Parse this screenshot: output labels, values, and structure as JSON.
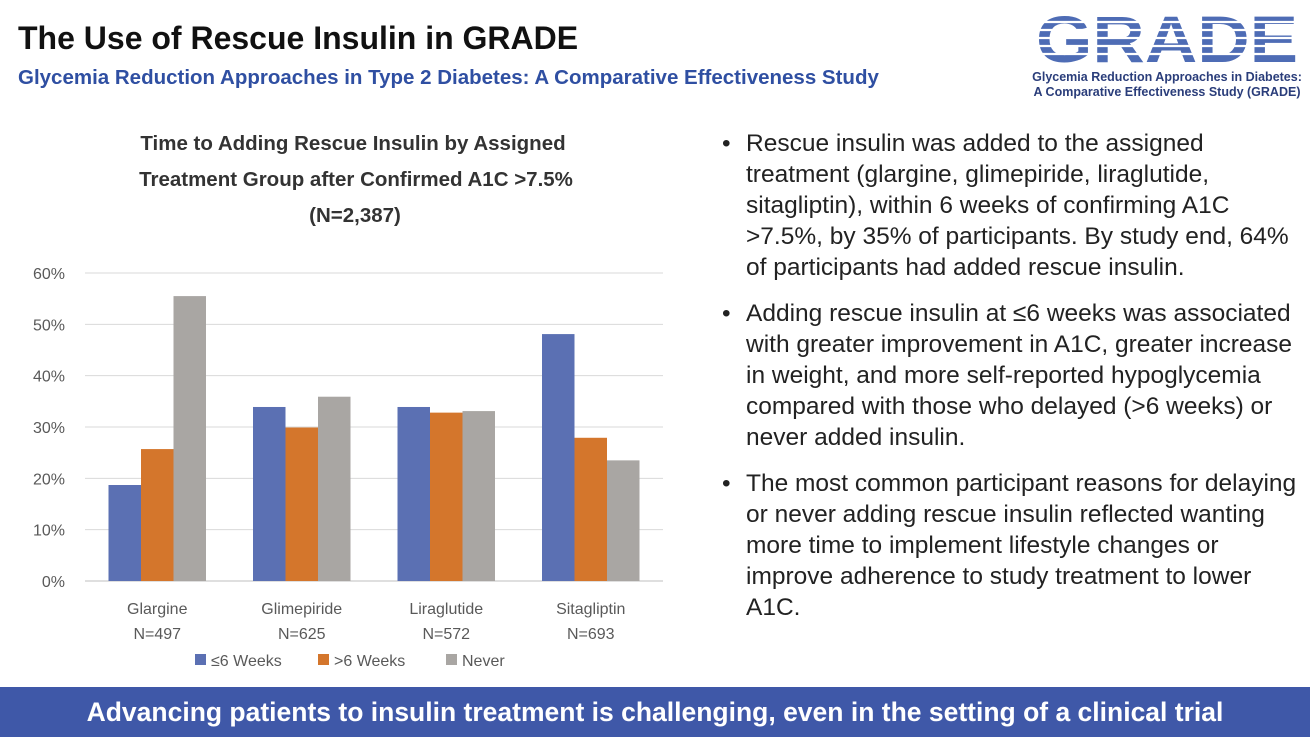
{
  "header": {
    "title": "The Use of Rescue Insulin in GRADE",
    "subtitle": "Glycemia Reduction Approaches in Type 2 Diabetes: A Comparative Effectiveness Study"
  },
  "logo": {
    "word": "GRADE",
    "caption_line1": "Glycemia Reduction Approaches in Diabetes:",
    "caption_line2": "A Comparative Effectiveness Study (GRADE)",
    "colors": {
      "word": "#4e6cb5",
      "caption": "#2a3d7a"
    }
  },
  "chart_data": {
    "type": "bar",
    "title_lines": [
      "Time to Adding Rescue Insulin by Assigned",
      "Treatment Group after Confirmed A1C >7.5%",
      "(N=2,387)"
    ],
    "categories": [
      {
        "name": "Glargine",
        "n": "N=497"
      },
      {
        "name": "Glimepiride",
        "n": "N=625"
      },
      {
        "name": "Liraglutide",
        "n": "N=572"
      },
      {
        "name": "Sitagliptin",
        "n": "N=693"
      }
    ],
    "series": [
      {
        "name": "≤6 Weeks",
        "color": "#5b70b3",
        "values": [
          18.7,
          33.9,
          33.9,
          48.1
        ]
      },
      {
        "name": ">6 Weeks",
        "color": "#d4762c",
        "values": [
          25.7,
          29.9,
          32.8,
          27.9
        ]
      },
      {
        "name": "Never",
        "color": "#a9a6a3",
        "values": [
          55.5,
          35.9,
          33.1,
          23.5
        ]
      }
    ],
    "ylim": [
      0,
      60
    ],
    "yticks": [
      0,
      10,
      20,
      30,
      40,
      50,
      60
    ],
    "ytick_labels": [
      "0%",
      "10%",
      "20%",
      "30%",
      "40%",
      "50%",
      "60%"
    ],
    "grid": true,
    "legend_position": "bottom"
  },
  "bullets": [
    "Rescue insulin was added to the assigned treatment (glargine, glimepiride, liraglutide, sitagliptin), within 6 weeks of confirming A1C >7.5%, by 35% of participants. By study end, 64% of participants had added rescue insulin.",
    "Adding rescue insulin at ≤6 weeks was associated with greater improvement in A1C, greater increase in weight, and more self-reported hypoglycemia compared with those who delayed (>6 weeks) or never added insulin.",
    "The most common participant reasons for delaying or never adding rescue insulin reflected wanting more time to implement lifestyle changes or improve adherence to study treatment to lower A1C."
  ],
  "footer": {
    "text": "Advancing patients to insulin treatment is challenging, even in the setting of a clinical trial"
  }
}
